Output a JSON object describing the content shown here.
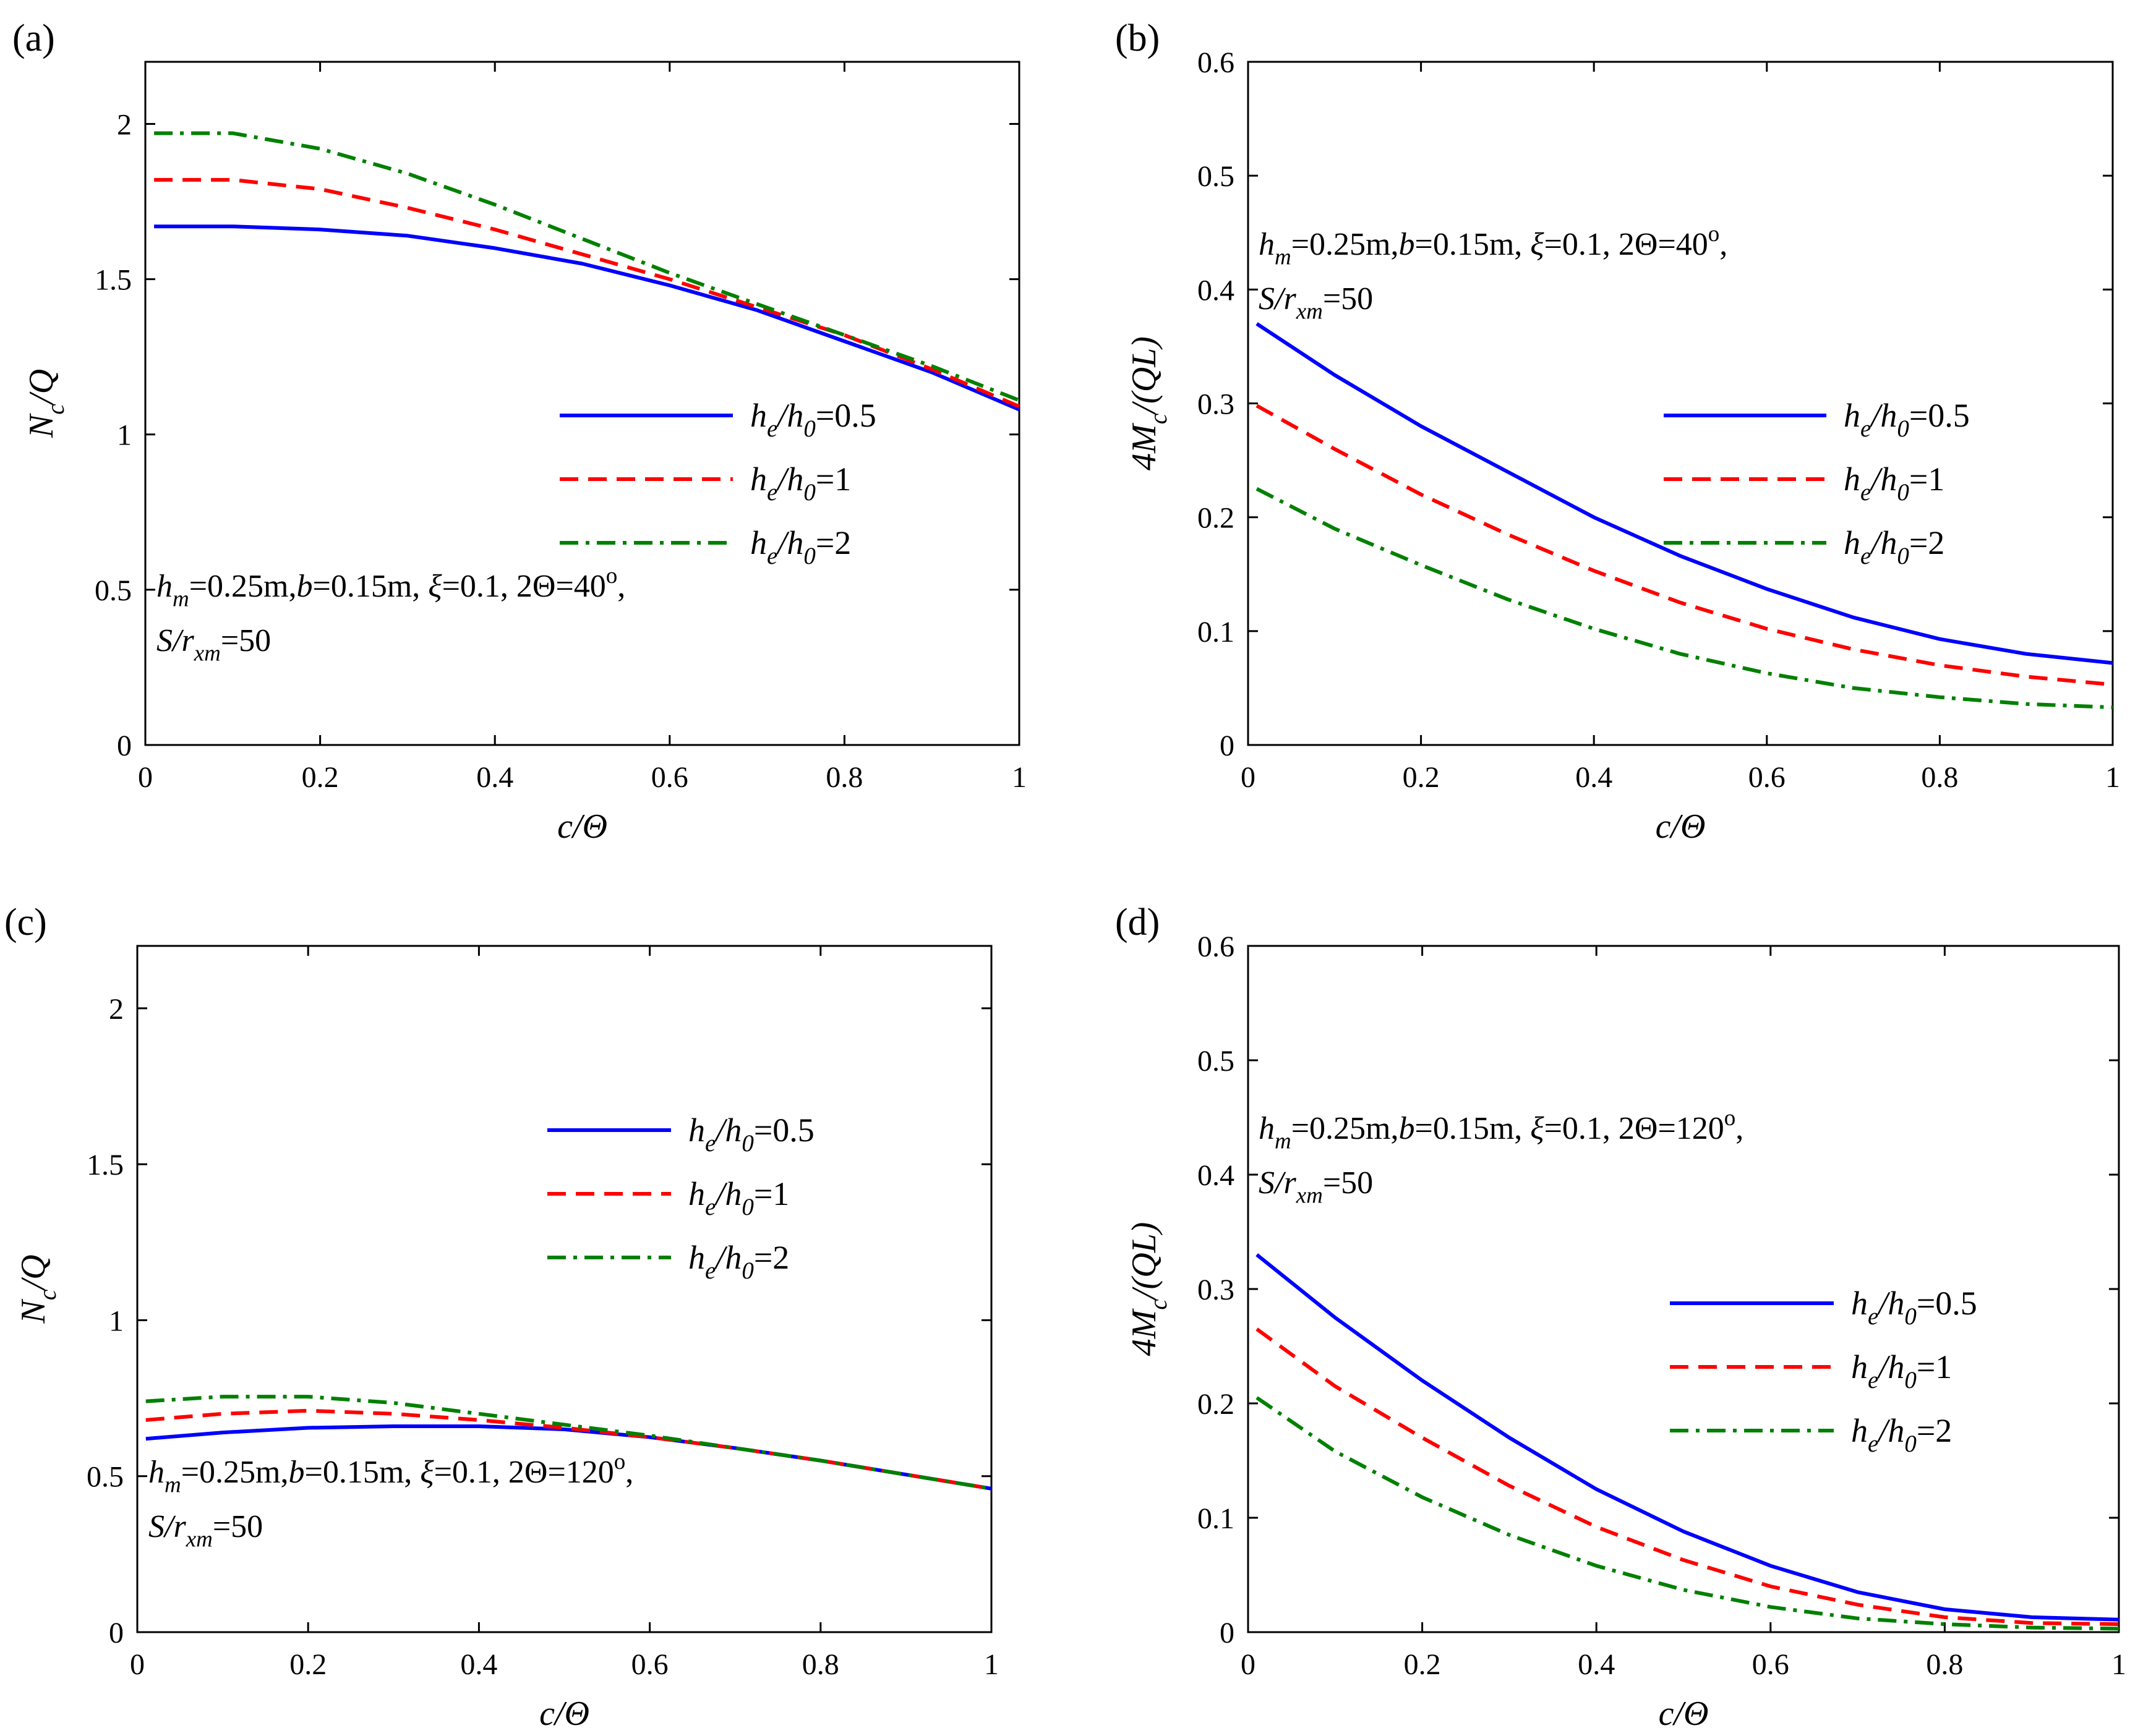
{
  "chart_data": [
    {
      "type": "line",
      "panel_label": "(a)",
      "xlabel": "c/Θ",
      "ylabel": {
        "main": "N",
        "sub": "c",
        "tail": "/Q"
      },
      "xlim": [
        0,
        1
      ],
      "ylim": [
        0,
        2.2
      ],
      "xticks": [
        0,
        0.2,
        0.4,
        0.6,
        0.8,
        1
      ],
      "yticks": [
        0,
        0.5,
        1,
        1.5,
        2
      ],
      "xtick_labels": [
        "0",
        "0.2",
        "0.4",
        "0.6",
        "0.8",
        "1"
      ],
      "ytick_labels": [
        "0",
        "0.5",
        "1",
        "1.5",
        "2"
      ],
      "grid": false,
      "annotation": {
        "line1": [
          {
            "t": "h",
            "s": "i"
          },
          {
            "t": "m",
            "s": "sub"
          },
          {
            "t": "=0.25m,",
            "s": "n"
          },
          {
            "t": "b",
            "s": "i"
          },
          {
            "t": "=0.15m, ",
            "s": "n"
          },
          {
            "t": "ξ",
            "s": "i"
          },
          {
            "t": "=0.1, 2Θ=40",
            "s": "n"
          },
          {
            "t": "o",
            "s": "sup"
          },
          {
            "t": ",",
            "s": "n"
          }
        ],
        "line2": [
          {
            "t": "S/r",
            "s": "i"
          },
          {
            "t": "xm",
            "s": "sub"
          },
          {
            "t": "=50",
            "s": "n"
          }
        ]
      },
      "legend_location": "center-right",
      "series": [
        {
          "name": "h_e/h_0=0.5",
          "label": [
            {
              "t": "h",
              "s": "i"
            },
            {
              "t": "e",
              "s": "sub"
            },
            {
              "t": "/h",
              "s": "i"
            },
            {
              "t": "0",
              "s": "sub"
            },
            {
              "t": "=0.5",
              "s": "n"
            }
          ],
          "color": "#0000ff",
          "dash": "solid",
          "x": [
            0.01,
            0.1,
            0.2,
            0.3,
            0.4,
            0.5,
            0.6,
            0.7,
            0.8,
            0.9,
            1.0
          ],
          "y": [
            1.67,
            1.67,
            1.66,
            1.64,
            1.6,
            1.55,
            1.48,
            1.4,
            1.3,
            1.2,
            1.08
          ]
        },
        {
          "name": "h_e/h_0=1",
          "label": [
            {
              "t": "h",
              "s": "i"
            },
            {
              "t": "e",
              "s": "sub"
            },
            {
              "t": "/h",
              "s": "i"
            },
            {
              "t": "0",
              "s": "sub"
            },
            {
              "t": "=1",
              "s": "n"
            }
          ],
          "color": "#ff0000",
          "dash": "dashed",
          "x": [
            0.01,
            0.1,
            0.2,
            0.3,
            0.4,
            0.5,
            0.6,
            0.7,
            0.8,
            0.9,
            1.0
          ],
          "y": [
            1.82,
            1.82,
            1.79,
            1.73,
            1.66,
            1.58,
            1.5,
            1.41,
            1.32,
            1.21,
            1.09
          ]
        },
        {
          "name": "h_e/h_0=2",
          "label": [
            {
              "t": "h",
              "s": "i"
            },
            {
              "t": "e",
              "s": "sub"
            },
            {
              "t": "/h",
              "s": "i"
            },
            {
              "t": "0",
              "s": "sub"
            },
            {
              "t": "=2",
              "s": "n"
            }
          ],
          "color": "#008000",
          "dash": "dashdot",
          "x": [
            0.01,
            0.1,
            0.2,
            0.3,
            0.4,
            0.5,
            0.6,
            0.7,
            0.8,
            0.9,
            1.0
          ],
          "y": [
            1.97,
            1.97,
            1.92,
            1.84,
            1.74,
            1.63,
            1.52,
            1.42,
            1.32,
            1.22,
            1.11
          ]
        }
      ]
    },
    {
      "type": "line",
      "panel_label": "(b)",
      "xlabel": "c/Θ",
      "ylabel": {
        "main": "4M",
        "sub": "c",
        "tail": "/(QL)"
      },
      "xlim": [
        0,
        1
      ],
      "ylim": [
        0,
        0.6
      ],
      "xticks": [
        0,
        0.2,
        0.4,
        0.6,
        0.8,
        1
      ],
      "yticks": [
        0,
        0.1,
        0.2,
        0.3,
        0.4,
        0.5,
        0.6
      ],
      "xtick_labels": [
        "0",
        "0.2",
        "0.4",
        "0.6",
        "0.8",
        "1"
      ],
      "ytick_labels": [
        "0",
        "0.1",
        "0.2",
        "0.3",
        "0.4",
        "0.5",
        "0.6"
      ],
      "grid": false,
      "annotation": {
        "line1": [
          {
            "t": "h",
            "s": "i"
          },
          {
            "t": "m",
            "s": "sub"
          },
          {
            "t": "=0.25m,",
            "s": "n"
          },
          {
            "t": "b",
            "s": "i"
          },
          {
            "t": "=0.15m, ",
            "s": "n"
          },
          {
            "t": "ξ",
            "s": "i"
          },
          {
            "t": "=0.1, 2Θ=40",
            "s": "n"
          },
          {
            "t": "o",
            "s": "sup"
          },
          {
            "t": ",",
            "s": "n"
          }
        ],
        "line2": [
          {
            "t": "S/r",
            "s": "i"
          },
          {
            "t": "xm",
            "s": "sub"
          },
          {
            "t": "=50",
            "s": "n"
          }
        ]
      },
      "legend_location": "center-right",
      "series": [
        {
          "name": "h_e/h_0=0.5",
          "label": [
            {
              "t": "h",
              "s": "i"
            },
            {
              "t": "e",
              "s": "sub"
            },
            {
              "t": "/h",
              "s": "i"
            },
            {
              "t": "0",
              "s": "sub"
            },
            {
              "t": "=0.5",
              "s": "n"
            }
          ],
          "color": "#0000ff",
          "dash": "solid",
          "x": [
            0.01,
            0.1,
            0.2,
            0.3,
            0.4,
            0.5,
            0.6,
            0.7,
            0.8,
            0.9,
            1.0
          ],
          "y": [
            0.37,
            0.325,
            0.28,
            0.24,
            0.2,
            0.166,
            0.137,
            0.112,
            0.093,
            0.08,
            0.072
          ]
        },
        {
          "name": "h_e/h_0=1",
          "label": [
            {
              "t": "h",
              "s": "i"
            },
            {
              "t": "e",
              "s": "sub"
            },
            {
              "t": "/h",
              "s": "i"
            },
            {
              "t": "0",
              "s": "sub"
            },
            {
              "t": "=1",
              "s": "n"
            }
          ],
          "color": "#ff0000",
          "dash": "dashed",
          "x": [
            0.01,
            0.1,
            0.2,
            0.3,
            0.4,
            0.5,
            0.6,
            0.7,
            0.8,
            0.9,
            1.0
          ],
          "y": [
            0.298,
            0.26,
            0.22,
            0.185,
            0.153,
            0.125,
            0.102,
            0.084,
            0.07,
            0.06,
            0.053
          ]
        },
        {
          "name": "h_e/h_0=2",
          "label": [
            {
              "t": "h",
              "s": "i"
            },
            {
              "t": "e",
              "s": "sub"
            },
            {
              "t": "/h",
              "s": "i"
            },
            {
              "t": "0",
              "s": "sub"
            },
            {
              "t": "=2",
              "s": "n"
            }
          ],
          "color": "#008000",
          "dash": "dashdot",
          "x": [
            0.01,
            0.1,
            0.2,
            0.3,
            0.4,
            0.5,
            0.6,
            0.7,
            0.8,
            0.9,
            1.0
          ],
          "y": [
            0.225,
            0.19,
            0.158,
            0.128,
            0.102,
            0.08,
            0.063,
            0.05,
            0.042,
            0.036,
            0.033
          ]
        }
      ]
    },
    {
      "type": "line",
      "panel_label": "(c)",
      "xlabel": "c/Θ",
      "ylabel": {
        "main": "N",
        "sub": "c",
        "tail": "/Q"
      },
      "xlim": [
        0,
        1
      ],
      "ylim": [
        0,
        2.2
      ],
      "xticks": [
        0,
        0.2,
        0.4,
        0.6,
        0.8,
        1
      ],
      "yticks": [
        0,
        0.5,
        1,
        1.5,
        2
      ],
      "xtick_labels": [
        "0",
        "0.2",
        "0.4",
        "0.6",
        "0.8",
        "1"
      ],
      "ytick_labels": [
        "0",
        "0.5",
        "1",
        "1.5",
        "2"
      ],
      "grid": false,
      "annotation": {
        "line1": [
          {
            "t": "h",
            "s": "i"
          },
          {
            "t": "m",
            "s": "sub"
          },
          {
            "t": "=0.25m,",
            "s": "n"
          },
          {
            "t": "b",
            "s": "i"
          },
          {
            "t": "=0.15m, ",
            "s": "n"
          },
          {
            "t": "ξ",
            "s": "i"
          },
          {
            "t": "=0.1, 2Θ=120",
            "s": "n"
          },
          {
            "t": "o",
            "s": "sup"
          },
          {
            "t": ",",
            "s": "n"
          }
        ],
        "line2": [
          {
            "t": "S/r",
            "s": "i"
          },
          {
            "t": "xm",
            "s": "sub"
          },
          {
            "t": "=50",
            "s": "n"
          }
        ]
      },
      "legend_location": "upper-center-right",
      "series": [
        {
          "name": "h_e/h_0=0.5",
          "label": [
            {
              "t": "h",
              "s": "i"
            },
            {
              "t": "e",
              "s": "sub"
            },
            {
              "t": "/h",
              "s": "i"
            },
            {
              "t": "0",
              "s": "sub"
            },
            {
              "t": "=0.5",
              "s": "n"
            }
          ],
          "color": "#0000ff",
          "dash": "solid",
          "x": [
            0.01,
            0.1,
            0.2,
            0.3,
            0.4,
            0.5,
            0.6,
            0.7,
            0.8,
            0.9,
            1.0
          ],
          "y": [
            0.62,
            0.64,
            0.655,
            0.66,
            0.66,
            0.65,
            0.625,
            0.59,
            0.55,
            0.505,
            0.46
          ]
        },
        {
          "name": "h_e/h_0=1",
          "label": [
            {
              "t": "h",
              "s": "i"
            },
            {
              "t": "e",
              "s": "sub"
            },
            {
              "t": "/h",
              "s": "i"
            },
            {
              "t": "0",
              "s": "sub"
            },
            {
              "t": "=1",
              "s": "n"
            }
          ],
          "color": "#ff0000",
          "dash": "dashed",
          "x": [
            0.01,
            0.1,
            0.2,
            0.3,
            0.4,
            0.5,
            0.6,
            0.7,
            0.8,
            0.9,
            1.0
          ],
          "y": [
            0.68,
            0.7,
            0.71,
            0.7,
            0.68,
            0.655,
            0.625,
            0.59,
            0.55,
            0.505,
            0.46
          ]
        },
        {
          "name": "h_e/h_0=2",
          "label": [
            {
              "t": "h",
              "s": "i"
            },
            {
              "t": "e",
              "s": "sub"
            },
            {
              "t": "/h",
              "s": "i"
            },
            {
              "t": "0",
              "s": "sub"
            },
            {
              "t": "=2",
              "s": "n"
            }
          ],
          "color": "#008000",
          "dash": "dashdot",
          "x": [
            0.01,
            0.1,
            0.2,
            0.3,
            0.4,
            0.5,
            0.6,
            0.7,
            0.8,
            0.9,
            1.0
          ],
          "y": [
            0.74,
            0.755,
            0.755,
            0.735,
            0.7,
            0.665,
            0.63,
            0.59,
            0.55,
            0.505,
            0.46
          ]
        }
      ]
    },
    {
      "type": "line",
      "panel_label": "(d)",
      "xlabel": "c/Θ",
      "ylabel": {
        "main": "4M",
        "sub": "c",
        "tail": "/(QL)"
      },
      "xlim": [
        0,
        1
      ],
      "ylim": [
        0,
        0.6
      ],
      "xticks": [
        0,
        0.2,
        0.4,
        0.6,
        0.8,
        1
      ],
      "yticks": [
        0,
        0.1,
        0.2,
        0.3,
        0.4,
        0.5,
        0.6
      ],
      "xtick_labels": [
        "0",
        "0.2",
        "0.4",
        "0.6",
        "0.8",
        "1"
      ],
      "ytick_labels": [
        "0",
        "0.1",
        "0.2",
        "0.3",
        "0.4",
        "0.5",
        "0.6"
      ],
      "grid": false,
      "annotation": {
        "line1": [
          {
            "t": "h",
            "s": "i"
          },
          {
            "t": "m",
            "s": "sub"
          },
          {
            "t": "=0.25m,",
            "s": "n"
          },
          {
            "t": "b",
            "s": "i"
          },
          {
            "t": "=0.15m, ",
            "s": "n"
          },
          {
            "t": "ξ",
            "s": "i"
          },
          {
            "t": "=0.1, 2Θ=120",
            "s": "n"
          },
          {
            "t": "o",
            "s": "sup"
          },
          {
            "t": ",",
            "s": "n"
          }
        ],
        "line2": [
          {
            "t": "S/r",
            "s": "i"
          },
          {
            "t": "xm",
            "s": "sub"
          },
          {
            "t": "=50",
            "s": "n"
          }
        ]
      },
      "legend_location": "center-right",
      "series": [
        {
          "name": "h_e/h_0=0.5",
          "label": [
            {
              "t": "h",
              "s": "i"
            },
            {
              "t": "e",
              "s": "sub"
            },
            {
              "t": "/h",
              "s": "i"
            },
            {
              "t": "0",
              "s": "sub"
            },
            {
              "t": "=0.5",
              "s": "n"
            }
          ],
          "color": "#0000ff",
          "dash": "solid",
          "x": [
            0.01,
            0.1,
            0.2,
            0.3,
            0.4,
            0.5,
            0.6,
            0.7,
            0.8,
            0.9,
            1.0
          ],
          "y": [
            0.33,
            0.275,
            0.22,
            0.17,
            0.125,
            0.088,
            0.058,
            0.035,
            0.02,
            0.013,
            0.011
          ]
        },
        {
          "name": "h_e/h_0=1",
          "label": [
            {
              "t": "h",
              "s": "i"
            },
            {
              "t": "e",
              "s": "sub"
            },
            {
              "t": "/h",
              "s": "i"
            },
            {
              "t": "0",
              "s": "sub"
            },
            {
              "t": "=1",
              "s": "n"
            }
          ],
          "color": "#ff0000",
          "dash": "dashed",
          "x": [
            0.01,
            0.1,
            0.2,
            0.3,
            0.4,
            0.5,
            0.6,
            0.7,
            0.8,
            0.9,
            1.0
          ],
          "y": [
            0.265,
            0.215,
            0.17,
            0.128,
            0.092,
            0.063,
            0.04,
            0.024,
            0.013,
            0.008,
            0.007
          ]
        },
        {
          "name": "h_e/h_0=2",
          "label": [
            {
              "t": "h",
              "s": "i"
            },
            {
              "t": "e",
              "s": "sub"
            },
            {
              "t": "/h",
              "s": "i"
            },
            {
              "t": "0",
              "s": "sub"
            },
            {
              "t": "=2",
              "s": "n"
            }
          ],
          "color": "#008000",
          "dash": "dashdot",
          "x": [
            0.01,
            0.1,
            0.2,
            0.3,
            0.4,
            0.5,
            0.6,
            0.7,
            0.8,
            0.9,
            1.0
          ],
          "y": [
            0.205,
            0.158,
            0.118,
            0.085,
            0.058,
            0.037,
            0.022,
            0.012,
            0.007,
            0.004,
            0.003
          ]
        }
      ]
    }
  ]
}
